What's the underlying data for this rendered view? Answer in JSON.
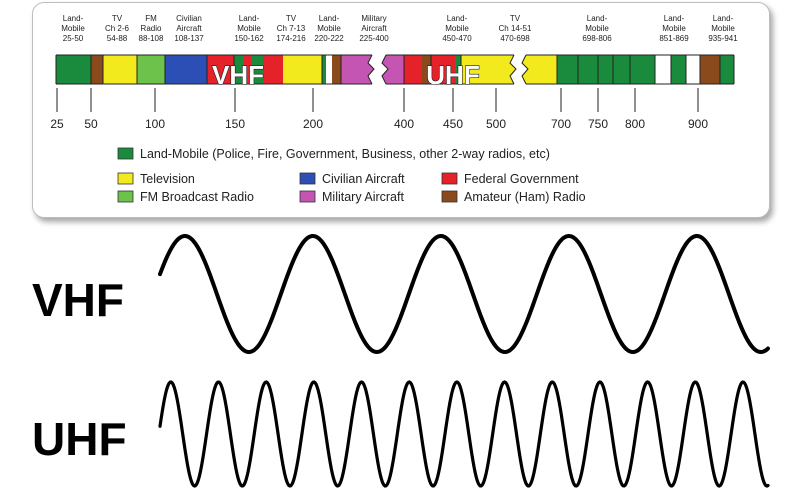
{
  "band_labels": [
    {
      "lines": [
        "Land-",
        "Mobile",
        "25-50"
      ]
    },
    {
      "lines": [
        "TV",
        "Ch 2-6",
        "54-88"
      ]
    },
    {
      "lines": [
        "FM",
        "Radio",
        "88-108"
      ]
    },
    {
      "lines": [
        "Civilian",
        "Aircraft",
        "108-137"
      ]
    },
    {
      "lines": [
        "Land-",
        "Mobile",
        "150-162"
      ]
    },
    {
      "lines": [
        "TV",
        "Ch 7-13",
        "174-216"
      ]
    },
    {
      "lines": [
        "Land-",
        "Mobile",
        "220-222"
      ]
    },
    {
      "lines": [
        "Military",
        "Aircraft",
        "225-400"
      ]
    },
    {
      "lines": [
        "Land-",
        "Mobile",
        "450-470"
      ]
    },
    {
      "lines": [
        "TV",
        "Ch 14-51",
        "470-698"
      ]
    },
    {
      "lines": [
        "Land-",
        "Mobile",
        "698-806"
      ]
    },
    {
      "lines": [
        "Land-",
        "Mobile",
        "851-869"
      ]
    },
    {
      "lines": [
        "Land-",
        "Mobile",
        "935-941"
      ]
    }
  ],
  "band_words": {
    "vhf": "VHF",
    "uhf": "UHF"
  },
  "ticks": [
    "25",
    "50",
    "100",
    "150",
    "200",
    "400",
    "450",
    "500",
    "700",
    "750",
    "800",
    "900"
  ],
  "legend": {
    "land_mobile": "Land-Mobile (Police, Fire, Government, Business, other 2-way radios, etc)",
    "television": "Television",
    "fm": "FM Broadcast Radio",
    "civilian": "Civilian Aircraft",
    "military": "Military Aircraft",
    "federal": "Federal Government",
    "amateur": "Amateur (Ham) Radio"
  },
  "waves": {
    "vhf_label": "VHF",
    "uhf_label": "UHF",
    "vhf_cycles": 5,
    "uhf_cycles": 13
  },
  "colors": {
    "land_mobile": "#1a8a3c",
    "television": "#f2ea1d",
    "fm": "#6cc24a",
    "civilian": "#2b4fb5",
    "military": "#c455b3",
    "federal": "#e52129",
    "amateur": "#8b4a1c",
    "white": "#ffffff"
  }
}
